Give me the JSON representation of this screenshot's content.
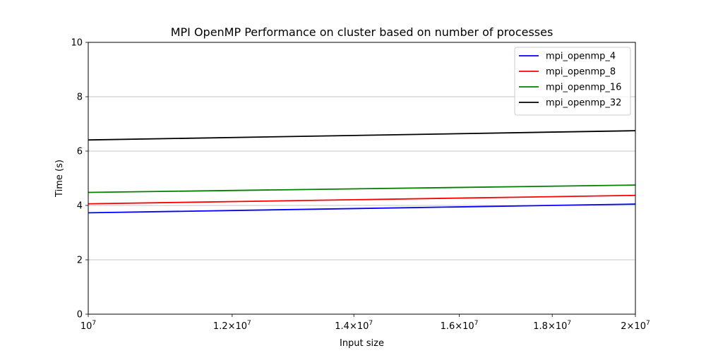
{
  "chart_data": {
    "type": "line",
    "title": "MPI OpenMP Performance on cluster based on number of processes",
    "xlabel": "Input size",
    "ylabel": "Time (s)",
    "x_scale": "log",
    "xlim": [
      10000000,
      20000000
    ],
    "ylim": [
      0,
      10
    ],
    "x_ticks": [
      10000000,
      12000000,
      14000000,
      16000000,
      18000000,
      20000000
    ],
    "x_tick_labels": [
      {
        "mant": "",
        "exp": "7"
      },
      {
        "mant": "1.2",
        "exp": "7"
      },
      {
        "mant": "1.4",
        "exp": "7"
      },
      {
        "mant": "1.6",
        "exp": "7"
      },
      {
        "mant": "1.8",
        "exp": "7"
      },
      {
        "mant": "2",
        "exp": "7"
      }
    ],
    "y_ticks": [
      0,
      2,
      4,
      6,
      8,
      10
    ],
    "grid": "y-major",
    "legend_position": "top-right",
    "series": [
      {
        "name": "mpi_openmp_4",
        "color": "#0000ff",
        "x": [
          10000000,
          20000000
        ],
        "y": [
          3.73,
          4.05
        ]
      },
      {
        "name": "mpi_openmp_8",
        "color": "#ff0000",
        "x": [
          10000000,
          20000000
        ],
        "y": [
          4.06,
          4.37
        ]
      },
      {
        "name": "mpi_openmp_16",
        "color": "#008000",
        "x": [
          10000000,
          20000000
        ],
        "y": [
          4.48,
          4.75
        ]
      },
      {
        "name": "mpi_openmp_32",
        "color": "#000000",
        "x": [
          10000000,
          20000000
        ],
        "y": [
          6.41,
          6.75
        ]
      }
    ]
  }
}
